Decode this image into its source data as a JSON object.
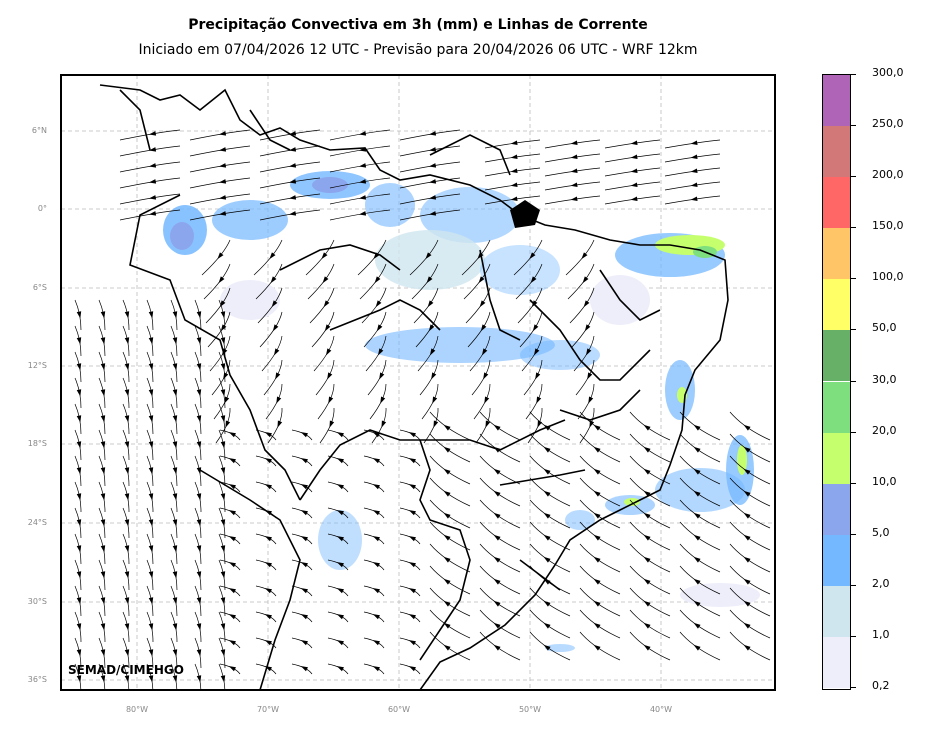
{
  "title": "Precipitação Convectiva em 3h (mm) e Linhas de Corrente",
  "subtitle": "Iniciado em 07/04/2026 12 UTC - Previsão para 20/04/2026 06 UTC - WRF 12km",
  "credit": "SEMAD/CIMEHGO",
  "lat_labels": [
    "6°N",
    "0°",
    "6°S",
    "12°S",
    "18°S",
    "24°S",
    "30°S",
    "36°S"
  ],
  "lon_labels": [
    "80°W",
    "70°W",
    "60°W",
    "50°W",
    "40°W"
  ],
  "colorbar": {
    "labels": [
      "0,2",
      "1,0",
      "2,0",
      "5,0",
      "10,0",
      "20,0",
      "30,0",
      "50,0",
      "100,0",
      "150,0",
      "200,0",
      "250,0",
      "300,0"
    ],
    "colors": [
      "#eeeefa",
      "#cfe6ef",
      "#74b8ff",
      "#8ca6ee",
      "#c6ff6e",
      "#7ddf7d",
      "#67b067",
      "#ffff66",
      "#ffc566",
      "#ff6666",
      "#d27878",
      "#b064b8"
    ]
  }
}
